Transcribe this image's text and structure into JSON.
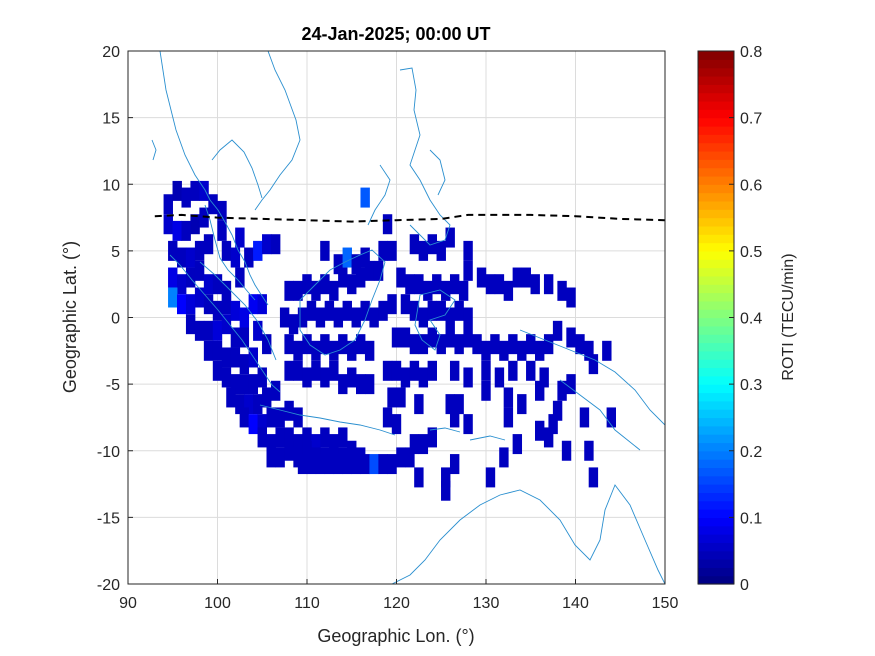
{
  "chart_data": {
    "type": "heatmap",
    "title": "24-Jan-2025; 00:00 UT",
    "xlabel": "Geographic Lon. (°)",
    "ylabel": "Geographic Lat. (°)",
    "xlim": [
      90,
      150
    ],
    "ylim": [
      -20,
      20
    ],
    "xticks": [
      "90",
      "100",
      "110",
      "120",
      "130",
      "140",
      "150"
    ],
    "yticks": [
      "20",
      "15",
      "10",
      "5",
      "0",
      "-5",
      "-10",
      "-15",
      "-20"
    ],
    "grid": true,
    "colorbar": {
      "label": "ROTI (TECU/min)",
      "range": [
        0,
        0.8
      ],
      "ticks": [
        "0",
        "0.1",
        "0.2",
        "0.3",
        "0.4",
        "0.5",
        "0.6",
        "0.7",
        "0.8"
      ],
      "colormap": "jet"
    },
    "cells": [
      [
        94.5,
        8.5,
        0.05
      ],
      [
        95.5,
        9.5,
        0.04
      ],
      [
        96.5,
        9.0,
        0.05
      ],
      [
        97.5,
        9.5,
        0.05
      ],
      [
        98.5,
        9.5,
        0.06
      ],
      [
        99.5,
        8.5,
        0.05
      ],
      [
        100.5,
        8.0,
        0.05
      ],
      [
        94.5,
        7.0,
        0.06
      ],
      [
        95.5,
        6.5,
        0.08
      ],
      [
        96.5,
        6.5,
        0.05
      ],
      [
        97.5,
        7.0,
        0.04
      ],
      [
        98.5,
        7.5,
        0.05
      ],
      [
        100.5,
        6.5,
        0.05
      ],
      [
        102.5,
        6.0,
        0.06
      ],
      [
        95.0,
        5.0,
        0.05
      ],
      [
        96.0,
        4.5,
        0.05
      ],
      [
        97.0,
        4.5,
        0.06
      ],
      [
        98.0,
        5.0,
        0.05
      ],
      [
        99.0,
        5.5,
        0.05
      ],
      [
        101.0,
        5.0,
        0.05
      ],
      [
        102.0,
        4.5,
        0.06
      ],
      [
        103.5,
        4.5,
        0.05
      ],
      [
        104.5,
        5.0,
        0.12
      ],
      [
        105.5,
        5.5,
        0.06
      ],
      [
        106.5,
        5.5,
        0.05
      ],
      [
        95.0,
        3.0,
        0.08
      ],
      [
        96.0,
        2.5,
        0.06
      ],
      [
        97.0,
        3.0,
        0.05
      ],
      [
        98.0,
        3.5,
        0.05
      ],
      [
        99.0,
        2.5,
        0.06
      ],
      [
        100.0,
        2.5,
        0.05
      ],
      [
        101.0,
        2.0,
        0.05
      ],
      [
        102.5,
        3.0,
        0.05
      ],
      [
        95.0,
        1.5,
        0.2
      ],
      [
        96.0,
        1.0,
        0.1
      ],
      [
        97.0,
        1.0,
        0.07
      ],
      [
        98.0,
        1.5,
        0.06
      ],
      [
        99.0,
        1.0,
        0.05
      ],
      [
        100.0,
        0.5,
        0.05
      ],
      [
        101.0,
        1.0,
        0.05
      ],
      [
        102.0,
        0.5,
        0.07
      ],
      [
        103.0,
        0.0,
        0.08
      ],
      [
        104.0,
        1.0,
        0.09
      ],
      [
        105.0,
        1.0,
        0.07
      ],
      [
        97.0,
        -0.5,
        0.05
      ],
      [
        98.0,
        -1.0,
        0.05
      ],
      [
        99.0,
        -1.0,
        0.05
      ],
      [
        100.0,
        -1.0,
        0.07
      ],
      [
        101.0,
        -0.5,
        0.06
      ],
      [
        102.0,
        -1.5,
        0.05
      ],
      [
        103.0,
        -1.5,
        0.05
      ],
      [
        104.5,
        -1.0,
        0.06
      ],
      [
        99.0,
        -2.5,
        0.05
      ],
      [
        100.0,
        -2.5,
        0.05
      ],
      [
        101.0,
        -3.0,
        0.05
      ],
      [
        102.0,
        -3.0,
        0.05
      ],
      [
        103.0,
        -3.5,
        0.05
      ],
      [
        104.0,
        -3.0,
        0.06
      ],
      [
        105.5,
        -2.0,
        0.05
      ],
      [
        100.0,
        -4.0,
        0.05
      ],
      [
        101.0,
        -4.5,
        0.05
      ],
      [
        102.0,
        -5.0,
        0.05
      ],
      [
        103.0,
        -5.0,
        0.05
      ],
      [
        104.0,
        -5.0,
        0.05
      ],
      [
        105.0,
        -4.5,
        0.05
      ],
      [
        101.5,
        -6.0,
        0.05
      ],
      [
        102.5,
        -6.5,
        0.05
      ],
      [
        103.5,
        -6.5,
        0.06
      ],
      [
        104.5,
        -6.5,
        0.05
      ],
      [
        105.5,
        -6.0,
        0.05
      ],
      [
        106.5,
        -5.5,
        0.05
      ],
      [
        103.0,
        -7.5,
        0.05
      ],
      [
        104.0,
        -8.0,
        0.1
      ],
      [
        105.0,
        -8.0,
        0.06
      ],
      [
        106.0,
        -7.5,
        0.05
      ],
      [
        107.0,
        -7.5,
        0.05
      ],
      [
        108.0,
        -7.0,
        0.05
      ],
      [
        109.0,
        -7.5,
        0.05
      ],
      [
        105.0,
        -9.0,
        0.05
      ],
      [
        106.0,
        -9.5,
        0.05
      ],
      [
        107.0,
        -9.0,
        0.05
      ],
      [
        108.0,
        -9.0,
        0.05
      ],
      [
        109.0,
        -9.5,
        0.05
      ],
      [
        110.0,
        -9.0,
        0.05
      ],
      [
        111.0,
        -9.5,
        0.06
      ],
      [
        112.0,
        -9.0,
        0.05
      ],
      [
        113.0,
        -9.5,
        0.05
      ],
      [
        114.0,
        -9.0,
        0.05
      ],
      [
        106.0,
        -10.5,
        0.05
      ],
      [
        107.0,
        -10.5,
        0.05
      ],
      [
        108.0,
        -10.0,
        0.05
      ],
      [
        109.0,
        -10.5,
        0.05
      ],
      [
        110.0,
        -10.0,
        0.05
      ],
      [
        111.0,
        -10.5,
        0.05
      ],
      [
        112.0,
        -10.5,
        0.05
      ],
      [
        113.0,
        -10.0,
        0.05
      ],
      [
        114.0,
        -10.5,
        0.05
      ],
      [
        115.0,
        -10.0,
        0.05
      ],
      [
        116.0,
        -10.5,
        0.05
      ],
      [
        109.5,
        -11.0,
        0.05
      ],
      [
        110.5,
        -11.0,
        0.05
      ],
      [
        111.5,
        -11.0,
        0.05
      ],
      [
        112.5,
        -11.0,
        0.05
      ],
      [
        113.5,
        -11.0,
        0.05
      ],
      [
        114.5,
        -11.0,
        0.05
      ],
      [
        115.5,
        -11.0,
        0.05
      ],
      [
        116.5,
        -11.0,
        0.05
      ],
      [
        117.5,
        -11.0,
        0.16
      ],
      [
        118.5,
        -11.0,
        0.05
      ],
      [
        119.5,
        -11.0,
        0.05
      ],
      [
        120.5,
        -10.5,
        0.05
      ],
      [
        121.5,
        -10.5,
        0.05
      ],
      [
        122.0,
        -9.5,
        0.05
      ],
      [
        123.0,
        -9.5,
        0.05
      ],
      [
        124.0,
        -9.0,
        0.05
      ],
      [
        122.5,
        -12.0,
        0.05
      ],
      [
        125.5,
        -12.0,
        0.05
      ],
      [
        126.5,
        -11.0,
        0.05
      ],
      [
        108.0,
        -4.0,
        0.05
      ],
      [
        109.0,
        -4.0,
        0.05
      ],
      [
        110.0,
        -4.5,
        0.05
      ],
      [
        111.0,
        -4.0,
        0.05
      ],
      [
        112.0,
        -4.5,
        0.05
      ],
      [
        113.0,
        -4.0,
        0.05
      ],
      [
        114.0,
        -5.0,
        0.05
      ],
      [
        115.0,
        -4.5,
        0.05
      ],
      [
        116.0,
        -5.0,
        0.05
      ],
      [
        117.0,
        -5.0,
        0.05
      ],
      [
        108.0,
        -2.0,
        0.05
      ],
      [
        109.0,
        -2.5,
        0.05
      ],
      [
        110.0,
        -2.0,
        0.05
      ],
      [
        111.0,
        -2.5,
        0.05
      ],
      [
        112.0,
        -2.0,
        0.05
      ],
      [
        113.0,
        -2.5,
        0.05
      ],
      [
        114.0,
        -2.0,
        0.05
      ],
      [
        115.0,
        -2.5,
        0.05
      ],
      [
        116.0,
        -2.0,
        0.05
      ],
      [
        117.0,
        -2.5,
        0.05
      ],
      [
        107.5,
        0.0,
        0.05
      ],
      [
        108.5,
        -0.5,
        0.05
      ],
      [
        109.5,
        0.0,
        0.05
      ],
      [
        110.5,
        0.5,
        0.05
      ],
      [
        111.5,
        0.0,
        0.05
      ],
      [
        112.5,
        0.5,
        0.05
      ],
      [
        113.5,
        0.0,
        0.05
      ],
      [
        114.5,
        0.5,
        0.05
      ],
      [
        115.5,
        0.0,
        0.05
      ],
      [
        116.5,
        0.5,
        0.05
      ],
      [
        117.5,
        0.0,
        0.05
      ],
      [
        118.5,
        0.5,
        0.05
      ],
      [
        119.5,
        1.0,
        0.05
      ],
      [
        108.0,
        2.0,
        0.05
      ],
      [
        109.0,
        2.0,
        0.05
      ],
      [
        110.0,
        2.5,
        0.05
      ],
      [
        111.0,
        2.0,
        0.05
      ],
      [
        112.0,
        2.5,
        0.05
      ],
      [
        113.0,
        2.0,
        0.05
      ],
      [
        114.0,
        3.0,
        0.05
      ],
      [
        115.0,
        2.5,
        0.05
      ],
      [
        116.0,
        3.0,
        0.05
      ],
      [
        117.0,
        3.5,
        0.05
      ],
      [
        118.0,
        3.5,
        0.05
      ],
      [
        112.0,
        5.0,
        0.05
      ],
      [
        113.5,
        4.0,
        0.05
      ],
      [
        114.5,
        4.5,
        0.18
      ],
      [
        115.5,
        4.0,
        0.05
      ],
      [
        116.5,
        4.5,
        0.05
      ],
      [
        118.5,
        5.0,
        0.05
      ],
      [
        119.5,
        5.0,
        0.05
      ],
      [
        116.5,
        9.0,
        0.17
      ],
      [
        119.0,
        7.0,
        0.05
      ],
      [
        122.0,
        5.5,
        0.05
      ],
      [
        123.0,
        5.0,
        0.05
      ],
      [
        124.0,
        5.5,
        0.05
      ],
      [
        125.0,
        5.0,
        0.05
      ],
      [
        126.0,
        6.0,
        0.05
      ],
      [
        128.0,
        5.0,
        0.05
      ],
      [
        128.0,
        3.5,
        0.05
      ],
      [
        120.5,
        3.0,
        0.05
      ],
      [
        121.5,
        2.5,
        0.05
      ],
      [
        122.5,
        2.5,
        0.05
      ],
      [
        123.5,
        2.0,
        0.05
      ],
      [
        124.5,
        2.5,
        0.05
      ],
      [
        125.5,
        2.0,
        0.05
      ],
      [
        126.5,
        2.5,
        0.05
      ],
      [
        127.5,
        2.0,
        0.05
      ],
      [
        121.0,
        1.0,
        0.05
      ],
      [
        122.0,
        0.5,
        0.05
      ],
      [
        123.0,
        0.0,
        0.05
      ],
      [
        124.0,
        0.5,
        0.05
      ],
      [
        125.0,
        0.5,
        0.05
      ],
      [
        126.0,
        0.0,
        0.05
      ],
      [
        127.0,
        0.5,
        0.05
      ],
      [
        128.0,
        0.0,
        0.05
      ],
      [
        129.5,
        3.0,
        0.05
      ],
      [
        130.5,
        2.5,
        0.05
      ],
      [
        131.5,
        2.5,
        0.05
      ],
      [
        132.5,
        2.0,
        0.05
      ],
      [
        133.5,
        3.0,
        0.05
      ],
      [
        134.5,
        3.0,
        0.05
      ],
      [
        135.5,
        2.5,
        0.05
      ],
      [
        137.0,
        2.5,
        0.05
      ],
      [
        138.5,
        2.0,
        0.05
      ],
      [
        139.5,
        1.5,
        0.05
      ],
      [
        120.0,
        -1.5,
        0.05
      ],
      [
        121.0,
        -1.5,
        0.05
      ],
      [
        122.0,
        -2.0,
        0.05
      ],
      [
        123.0,
        -2.0,
        0.05
      ],
      [
        124.0,
        -1.5,
        0.05
      ],
      [
        125.0,
        -2.0,
        0.05
      ],
      [
        126.0,
        -1.5,
        0.05
      ],
      [
        127.0,
        -2.0,
        0.05
      ],
      [
        128.0,
        -1.5,
        0.05
      ],
      [
        129.0,
        -2.0,
        0.05
      ],
      [
        130.0,
        -2.5,
        0.05
      ],
      [
        131.0,
        -2.0,
        0.05
      ],
      [
        132.0,
        -2.5,
        0.05
      ],
      [
        133.0,
        -2.0,
        0.05
      ],
      [
        134.0,
        -2.5,
        0.05
      ],
      [
        135.0,
        -2.0,
        0.05
      ],
      [
        136.0,
        -2.5,
        0.05
      ],
      [
        137.0,
        -2.0,
        0.05
      ],
      [
        138.0,
        -1.0,
        0.05
      ],
      [
        139.5,
        -1.5,
        0.05
      ],
      [
        140.5,
        -2.0,
        0.05
      ],
      [
        141.5,
        -2.5,
        0.05
      ],
      [
        143.5,
        -2.5,
        0.05
      ],
      [
        142.0,
        -3.5,
        0.05
      ],
      [
        119.0,
        -4.0,
        0.05
      ],
      [
        120.0,
        -4.0,
        0.05
      ],
      [
        121.0,
        -4.5,
        0.05
      ],
      [
        122.0,
        -4.0,
        0.05
      ],
      [
        123.0,
        -4.5,
        0.05
      ],
      [
        124.0,
        -4.0,
        0.05
      ],
      [
        126.5,
        -4.0,
        0.05
      ],
      [
        128.0,
        -4.5,
        0.05
      ],
      [
        130.0,
        -4.0,
        0.05
      ],
      [
        131.5,
        -4.5,
        0.05
      ],
      [
        133.0,
        -4.0,
        0.05
      ],
      [
        135.0,
        -4.0,
        0.05
      ],
      [
        136.5,
        -4.5,
        0.05
      ],
      [
        119.5,
        -6.0,
        0.05
      ],
      [
        120.5,
        -6.0,
        0.05
      ],
      [
        122.5,
        -6.5,
        0.05
      ],
      [
        126.0,
        -6.5,
        0.05
      ],
      [
        127.0,
        -6.5,
        0.05
      ],
      [
        130.0,
        -5.5,
        0.05
      ],
      [
        132.5,
        -6.0,
        0.05
      ],
      [
        136.0,
        -5.5,
        0.05
      ],
      [
        138.5,
        -5.5,
        0.05
      ],
      [
        139.5,
        -5.0,
        0.05
      ],
      [
        119.0,
        -7.5,
        0.05
      ],
      [
        120.0,
        -8.0,
        0.05
      ],
      [
        126.5,
        -7.5,
        0.05
      ],
      [
        128.0,
        -8.0,
        0.05
      ],
      [
        132.5,
        -7.5,
        0.05
      ],
      [
        134.0,
        -6.5,
        0.05
      ],
      [
        138.0,
        -7.0,
        0.05
      ],
      [
        141.0,
        -7.5,
        0.05
      ],
      [
        136.0,
        -8.5,
        0.05
      ],
      [
        137.5,
        -8.0,
        0.05
      ],
      [
        144.0,
        -7.5,
        0.05
      ],
      [
        133.5,
        -9.5,
        0.05
      ],
      [
        137.0,
        -9.0,
        0.05
      ],
      [
        139.0,
        -10.0,
        0.05
      ],
      [
        141.5,
        -10.0,
        0.05
      ],
      [
        132.0,
        -10.5,
        0.05
      ],
      [
        130.5,
        -12.0,
        0.05
      ],
      [
        142.0,
        -12.0,
        0.05
      ],
      [
        125.5,
        -13.0,
        0.05
      ]
    ]
  }
}
